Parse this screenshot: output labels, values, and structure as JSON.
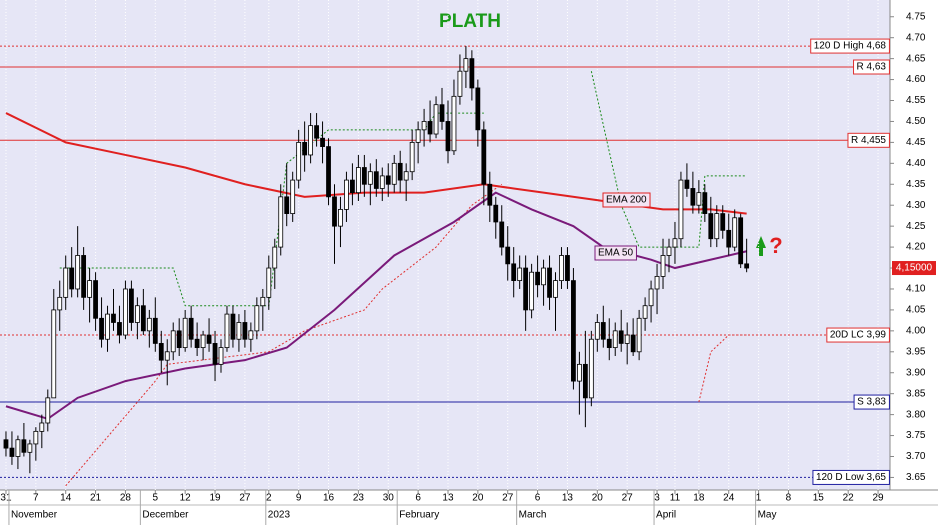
{
  "chart_data": {
    "type": "candlestick",
    "title": "PLATH",
    "title_color": "#1a9a1a",
    "xlim": [
      -1,
      148
    ],
    "ylim": [
      3.62,
      4.79
    ],
    "yticks": [
      3.65,
      {
        "value": 3.7,
        "label": "3.70"
      },
      3.75,
      {
        "value": 3.8,
        "label": "3.80"
      },
      3.85,
      {
        "value": 3.9,
        "label": "3.90"
      },
      3.95,
      {
        "value": 4,
        "label": "4.00"
      },
      4.05,
      {
        "value": 4.1,
        "label": "4.10"
      },
      4.15,
      {
        "value": 4.2,
        "label": "4.20"
      },
      4.25,
      {
        "value": 4.3,
        "label": "4.30"
      },
      4.35,
      {
        "value": 4.4,
        "label": "4.40"
      },
      4.45,
      {
        "value": 4.5,
        "label": "4.50"
      },
      4.55,
      {
        "value": 4.6,
        "label": "4.60"
      },
      4.65,
      {
        "value": 4.7,
        "label": "4.70"
      },
      4.75
    ],
    "xticks": [
      {
        "value": 0,
        "label": "31"
      },
      {
        "value": 5,
        "label": "7"
      },
      {
        "value": 10,
        "label": "14"
      },
      {
        "value": 15,
        "label": "21"
      },
      {
        "value": 20,
        "label": "28"
      },
      {
        "value": 25,
        "label": "5"
      },
      {
        "value": 30,
        "label": "12"
      },
      {
        "value": 35,
        "label": "19"
      },
      {
        "value": 40,
        "label": "27"
      },
      {
        "value": 44,
        "label": "2"
      },
      {
        "value": 49,
        "label": "9"
      },
      {
        "value": 54,
        "label": "16"
      },
      {
        "value": 59,
        "label": "23"
      },
      {
        "value": 64,
        "label": "30"
      },
      {
        "value": 69,
        "label": "6"
      },
      {
        "value": 74,
        "label": "13"
      },
      {
        "value": 79,
        "label": "20"
      },
      {
        "value": 84,
        "label": "27"
      },
      {
        "value": 89,
        "label": "6"
      },
      {
        "value": 94,
        "label": "13"
      },
      {
        "value": 99,
        "label": "20"
      },
      {
        "value": 104,
        "label": "27"
      },
      {
        "value": 109,
        "label": "3"
      },
      {
        "value": 112,
        "label": "11"
      },
      {
        "value": 116,
        "label": "18"
      },
      {
        "value": 121,
        "label": "24"
      },
      {
        "value": 126,
        "label": "1"
      },
      {
        "value": 131,
        "label": "8"
      },
      {
        "value": 136,
        "label": "15"
      },
      {
        "value": 141,
        "label": "22"
      },
      {
        "value": 146,
        "label": "29"
      }
    ],
    "month_labels": [
      {
        "value": 1,
        "label": "November"
      },
      {
        "value": 23,
        "label": "December"
      },
      {
        "value": 44,
        "label": "2023"
      },
      {
        "value": 66,
        "label": "February"
      },
      {
        "value": 86,
        "label": "March"
      },
      {
        "value": 109,
        "label": "April"
      },
      {
        "value": 126,
        "label": "May"
      }
    ],
    "ohlc": [
      [
        3.74,
        3.76,
        3.7,
        3.72
      ],
      [
        3.72,
        3.76,
        3.68,
        3.7
      ],
      [
        3.7,
        3.75,
        3.67,
        3.74
      ],
      [
        3.74,
        3.78,
        3.7,
        3.71
      ],
      [
        3.71,
        3.74,
        3.66,
        3.73
      ],
      [
        3.73,
        3.77,
        3.69,
        3.76
      ],
      [
        3.76,
        3.8,
        3.72,
        3.78
      ],
      [
        3.78,
        3.86,
        3.76,
        3.84
      ],
      [
        3.84,
        4.1,
        3.84,
        4.05
      ],
      [
        4.05,
        4.12,
        4.0,
        4.08
      ],
      [
        4.08,
        4.18,
        4.05,
        4.15
      ],
      [
        4.15,
        4.2,
        4.08,
        4.1
      ],
      [
        4.1,
        4.25,
        4.08,
        4.18
      ],
      [
        4.18,
        4.2,
        4.05,
        4.08
      ],
      [
        4.08,
        4.15,
        4.02,
        4.12
      ],
      [
        4.12,
        4.14,
        4.0,
        4.03
      ],
      [
        4.03,
        4.08,
        3.96,
        3.98
      ],
      [
        3.98,
        4.06,
        3.95,
        4.04
      ],
      [
        4.04,
        4.1,
        4.0,
        4.02
      ],
      [
        4.02,
        4.06,
        3.97,
        3.99
      ],
      [
        3.99,
        4.12,
        3.98,
        4.1
      ],
      [
        4.1,
        4.12,
        4.0,
        4.02
      ],
      [
        4.02,
        4.08,
        3.98,
        4.06
      ],
      [
        4.06,
        4.1,
        3.99,
        4.0
      ],
      [
        4.0,
        4.05,
        3.96,
        4.03
      ],
      [
        4.03,
        4.08,
        3.95,
        3.97
      ],
      [
        3.97,
        4.0,
        3.9,
        3.93
      ],
      [
        3.93,
        3.98,
        3.87,
        3.95
      ],
      [
        3.95,
        4.02,
        3.93,
        4.0
      ],
      [
        4.0,
        4.03,
        3.94,
        3.96
      ],
      [
        3.96,
        4.05,
        3.95,
        4.03
      ],
      [
        4.03,
        4.06,
        3.96,
        3.98
      ],
      [
        3.98,
        4.02,
        3.94,
        3.96
      ],
      [
        3.96,
        4.0,
        3.93,
        3.99
      ],
      [
        3.99,
        4.03,
        3.95,
        3.97
      ],
      [
        3.97,
        4.0,
        3.88,
        3.92
      ],
      [
        3.92,
        3.98,
        3.9,
        3.96
      ],
      [
        3.96,
        4.06,
        3.95,
        4.04
      ],
      [
        4.04,
        4.06,
        3.96,
        3.98
      ],
      [
        3.98,
        4.04,
        3.95,
        4.02
      ],
      [
        4.02,
        4.05,
        3.96,
        3.98
      ],
      [
        3.98,
        4.02,
        3.95,
        4.0
      ],
      [
        4.0,
        4.08,
        3.98,
        4.06
      ],
      [
        4.06,
        4.1,
        4.0,
        4.08
      ],
      [
        4.08,
        4.18,
        4.05,
        4.15
      ],
      [
        4.15,
        4.22,
        4.1,
        4.2
      ],
      [
        4.2,
        4.35,
        4.18,
        4.32
      ],
      [
        4.32,
        4.4,
        4.25,
        4.28
      ],
      [
        4.28,
        4.38,
        4.26,
        4.36
      ],
      [
        4.36,
        4.48,
        4.34,
        4.45
      ],
      [
        4.45,
        4.5,
        4.38,
        4.42
      ],
      [
        4.42,
        4.52,
        4.4,
        4.49
      ],
      [
        4.49,
        4.52,
        4.44,
        4.46
      ],
      [
        4.46,
        4.5,
        4.4,
        4.44
      ],
      [
        4.44,
        4.46,
        4.3,
        4.32
      ],
      [
        4.32,
        4.35,
        4.16,
        4.25
      ],
      [
        4.25,
        4.32,
        4.2,
        4.29
      ],
      [
        4.29,
        4.38,
        4.26,
        4.36
      ],
      [
        4.36,
        4.4,
        4.3,
        4.33
      ],
      [
        4.33,
        4.42,
        4.31,
        4.39
      ],
      [
        4.39,
        4.42,
        4.32,
        4.35
      ],
      [
        4.35,
        4.4,
        4.3,
        4.38
      ],
      [
        4.38,
        4.41,
        4.32,
        4.34
      ],
      [
        4.34,
        4.39,
        4.31,
        4.37
      ],
      [
        4.37,
        4.4,
        4.32,
        4.35
      ],
      [
        4.35,
        4.42,
        4.33,
        4.4
      ],
      [
        4.4,
        4.43,
        4.33,
        4.36
      ],
      [
        4.36,
        4.4,
        4.31,
        4.38
      ],
      [
        4.38,
        4.48,
        4.36,
        4.45
      ],
      [
        4.45,
        4.5,
        4.4,
        4.48
      ],
      [
        4.48,
        4.53,
        4.44,
        4.5
      ],
      [
        4.5,
        4.55,
        4.45,
        4.47
      ],
      [
        4.47,
        4.56,
        4.46,
        4.54
      ],
      [
        4.54,
        4.58,
        4.48,
        4.5
      ],
      [
        4.5,
        4.55,
        4.4,
        4.43
      ],
      [
        4.43,
        4.6,
        4.42,
        4.56
      ],
      [
        4.56,
        4.66,
        4.54,
        4.62
      ],
      [
        4.62,
        4.68,
        4.58,
        4.65
      ],
      [
        4.65,
        4.67,
        4.55,
        4.58
      ],
      [
        4.58,
        4.6,
        4.44,
        4.48
      ],
      [
        4.48,
        4.5,
        4.3,
        4.35
      ],
      [
        4.35,
        4.38,
        4.26,
        4.3
      ],
      [
        4.3,
        4.32,
        4.22,
        4.26
      ],
      [
        4.26,
        4.3,
        4.18,
        4.2
      ],
      [
        4.2,
        4.25,
        4.12,
        4.16
      ],
      [
        4.16,
        4.2,
        4.08,
        4.12
      ],
      [
        4.12,
        4.18,
        4.1,
        4.15
      ],
      [
        4.15,
        4.18,
        4.0,
        4.05
      ],
      [
        4.05,
        4.16,
        4.03,
        4.14
      ],
      [
        4.14,
        4.18,
        4.08,
        4.11
      ],
      [
        4.11,
        4.17,
        4.06,
        4.15
      ],
      [
        4.15,
        4.18,
        4.05,
        4.08
      ],
      [
        4.08,
        4.14,
        4.0,
        4.12
      ],
      [
        4.12,
        4.2,
        4.1,
        4.18
      ],
      [
        4.18,
        4.2,
        4.1,
        4.12
      ],
      [
        4.12,
        4.15,
        3.86,
        3.88
      ],
      [
        3.88,
        3.95,
        3.8,
        3.92
      ],
      [
        3.92,
        4.0,
        3.77,
        3.84
      ],
      [
        3.84,
        4.0,
        3.82,
        3.98
      ],
      [
        3.98,
        4.04,
        3.95,
        4.02
      ],
      [
        4.02,
        4.06,
        3.96,
        3.98
      ],
      [
        3.98,
        4.03,
        3.93,
        3.96
      ],
      [
        3.96,
        4.02,
        3.94,
        4.0
      ],
      [
        4.0,
        4.05,
        3.95,
        3.97
      ],
      [
        3.97,
        4.02,
        3.92,
        3.99
      ],
      [
        3.99,
        4.03,
        3.94,
        3.95
      ],
      [
        3.95,
        4.05,
        3.93,
        4.03
      ],
      [
        4.03,
        4.08,
        4.0,
        4.06
      ],
      [
        4.06,
        4.12,
        4.02,
        4.1
      ],
      [
        4.1,
        4.16,
        4.04,
        4.13
      ],
      [
        4.13,
        4.22,
        4.1,
        4.18
      ],
      [
        4.18,
        4.22,
        4.14,
        4.2
      ],
      [
        4.2,
        4.26,
        4.16,
        4.22
      ],
      [
        4.22,
        4.38,
        4.2,
        4.36
      ],
      [
        4.36,
        4.4,
        4.32,
        4.34
      ],
      [
        4.34,
        4.38,
        4.28,
        4.3
      ],
      [
        4.3,
        4.36,
        4.28,
        4.33
      ],
      [
        4.33,
        4.35,
        4.26,
        4.28
      ],
      [
        4.28,
        4.32,
        4.2,
        4.22
      ],
      [
        4.22,
        4.3,
        4.2,
        4.28
      ],
      [
        4.28,
        4.3,
        4.22,
        4.24
      ],
      [
        4.24,
        4.28,
        4.18,
        4.2
      ],
      [
        4.2,
        4.29,
        4.19,
        4.27
      ],
      [
        4.27,
        4.28,
        4.15,
        4.16
      ],
      [
        4.16,
        4.22,
        4.14,
        4.15
      ]
    ],
    "series": [
      {
        "name": "EMA 200",
        "color": "#e02020",
        "x": [
          0,
          10,
          20,
          30,
          40,
          50,
          60,
          70,
          80,
          85,
          90,
          100,
          110,
          118,
          124
        ],
        "values": [
          4.52,
          4.45,
          4.42,
          4.39,
          4.35,
          4.32,
          4.33,
          4.33,
          4.35,
          4.34,
          4.33,
          4.31,
          4.29,
          4.29,
          4.28
        ]
      },
      {
        "name": "EMA 50",
        "color": "#7a1a7a",
        "x": [
          0,
          7,
          12,
          20,
          30,
          40,
          47,
          55,
          65,
          75,
          82,
          88,
          95,
          100,
          108,
          112,
          118,
          124
        ],
        "values": [
          3.82,
          3.79,
          3.84,
          3.88,
          3.91,
          3.93,
          3.96,
          4.05,
          4.18,
          4.26,
          4.33,
          4.29,
          4.25,
          4.2,
          4.17,
          4.15,
          4.17,
          4.19
        ]
      }
    ],
    "channels": [
      {
        "color": "#1a8a1a",
        "x": [
          9,
          28,
          30,
          44,
          47,
          54,
          70,
          72,
          80,
          98,
          98,
          103,
          106,
          116,
          117,
          124
        ],
        "values": [
          4.15,
          4.15,
          4.06,
          4.06,
          4.4,
          4.48,
          4.48,
          4.52,
          4.52,
          null,
          4.62,
          4.3,
          4.2,
          4.2,
          4.37,
          4.37
        ]
      },
      {
        "color": "#e03030",
        "x": [
          10,
          25,
          27,
          44,
          50,
          60,
          63,
          72,
          78,
          83,
          116,
          116,
          118,
          121,
          124
        ],
        "values": [
          3.63,
          3.88,
          3.92,
          3.95,
          4.0,
          4.05,
          4.1,
          4.2,
          4.3,
          4.35,
          null,
          3.83,
          3.95,
          3.99,
          3.99
        ]
      }
    ],
    "levels": [
      {
        "value": 4.68,
        "label": "120 D High 4,68",
        "color": "#e03030",
        "style": "dashed"
      },
      {
        "value": 4.63,
        "label": "R 4,63",
        "color": "#e03030",
        "style": "solid"
      },
      {
        "value": 4.455,
        "label": "R 4,455",
        "color": "#e03030",
        "style": "solid"
      },
      {
        "value": 3.99,
        "label": "20D LC 3,99",
        "color": "#e03030",
        "style": "dashed"
      },
      {
        "value": 3.83,
        "label": "S 3,83",
        "color": "#2020a0",
        "style": "solid"
      },
      {
        "value": 3.65,
        "label": "120 D Low 3,65",
        "color": "#2020a0",
        "style": "dashed"
      }
    ],
    "last_price": {
      "value": 4.15,
      "label": "4,15000"
    },
    "signal_text": "?"
  }
}
